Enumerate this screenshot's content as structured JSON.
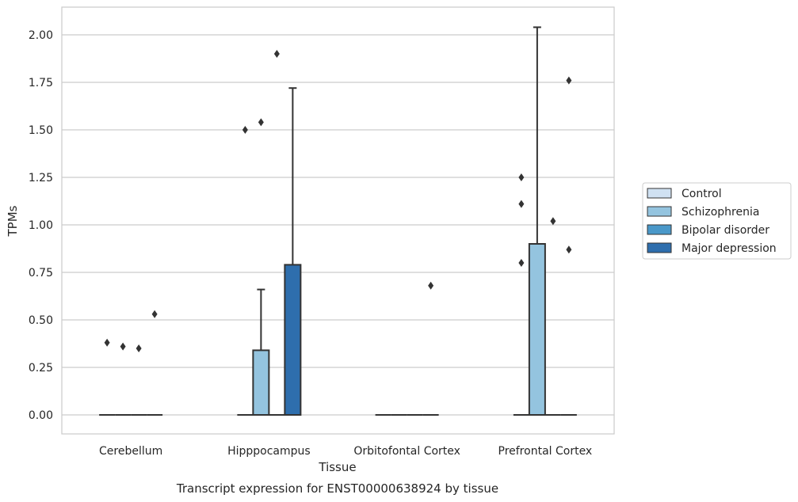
{
  "chart_data": {
    "type": "boxplot",
    "caption": "Transcript expression for ENST00000638924 by tissue",
    "xlabel": "Tissue",
    "ylabel": "TPMs",
    "ylim": [
      -0.1,
      2.15
    ],
    "yticks": [
      0.0,
      0.25,
      0.5,
      0.75,
      1.0,
      1.25,
      1.5,
      1.75,
      2.0
    ],
    "ytick_labels": [
      "0.00",
      "0.25",
      "0.50",
      "0.75",
      "1.00",
      "1.25",
      "1.50",
      "1.75",
      "2.00"
    ],
    "grid": true,
    "legend_position": "right",
    "categories": [
      "Cerebellum",
      "Hipppocampus",
      "Orbitofontal Cortex",
      "Prefrontal Cortex"
    ],
    "series": [
      {
        "name": "Control",
        "color": "#d0e1f2",
        "boxes": [
          {
            "q1": 0,
            "median": 0,
            "q3": 0,
            "whislo": 0,
            "whishi": 0,
            "fliers": [
              0.38
            ]
          },
          {
            "q1": 0,
            "median": 0,
            "q3": 0,
            "whislo": 0,
            "whishi": 0,
            "fliers": [
              1.5
            ]
          },
          {
            "q1": 0,
            "median": 0,
            "q3": 0,
            "whislo": 0,
            "whishi": 0,
            "fliers": []
          },
          {
            "q1": 0,
            "median": 0,
            "q3": 0,
            "whislo": 0,
            "whishi": 0,
            "fliers": [
              0.8,
              1.11,
              1.25
            ]
          }
        ]
      },
      {
        "name": "Schizophrenia",
        "color": "#94c4df",
        "boxes": [
          {
            "q1": 0,
            "median": 0,
            "q3": 0,
            "whislo": 0,
            "whishi": 0,
            "fliers": [
              0.36
            ]
          },
          {
            "q1": 0,
            "median": 0,
            "q3": 0.34,
            "whislo": 0,
            "whishi": 0.66,
            "fliers": [
              1.54
            ]
          },
          {
            "q1": 0,
            "median": 0,
            "q3": 0,
            "whislo": 0,
            "whishi": 0,
            "fliers": []
          },
          {
            "q1": 0,
            "median": 0,
            "q3": 0.9,
            "whislo": 0,
            "whishi": 2.04,
            "fliers": []
          }
        ]
      },
      {
        "name": "Bipolar disorder",
        "color": "#4a98c9",
        "boxes": [
          {
            "q1": 0,
            "median": 0,
            "q3": 0,
            "whislo": 0,
            "whishi": 0,
            "fliers": [
              0.35
            ]
          },
          {
            "q1": 0,
            "median": 0,
            "q3": 0,
            "whislo": 0,
            "whishi": 0,
            "fliers": [
              1.9
            ]
          },
          {
            "q1": 0,
            "median": 0,
            "q3": 0,
            "whislo": 0,
            "whishi": 0,
            "fliers": []
          },
          {
            "q1": 0,
            "median": 0,
            "q3": 0,
            "whislo": 0,
            "whishi": 0,
            "fliers": [
              1.02
            ]
          }
        ]
      },
      {
        "name": "Major depression",
        "color": "#2e6ead",
        "boxes": [
          {
            "q1": 0,
            "median": 0,
            "q3": 0,
            "whislo": 0,
            "whishi": 0,
            "fliers": [
              0.53
            ]
          },
          {
            "q1": 0,
            "median": 0,
            "q3": 0.79,
            "whislo": 0,
            "whishi": 1.72,
            "fliers": []
          },
          {
            "q1": 0,
            "median": 0,
            "q3": 0,
            "whislo": 0,
            "whishi": 0,
            "fliers": [
              0.68
            ]
          },
          {
            "q1": 0,
            "median": 0,
            "q3": 0,
            "whislo": 0,
            "whishi": 0,
            "fliers": [
              1.76,
              0.87
            ]
          }
        ]
      }
    ]
  }
}
